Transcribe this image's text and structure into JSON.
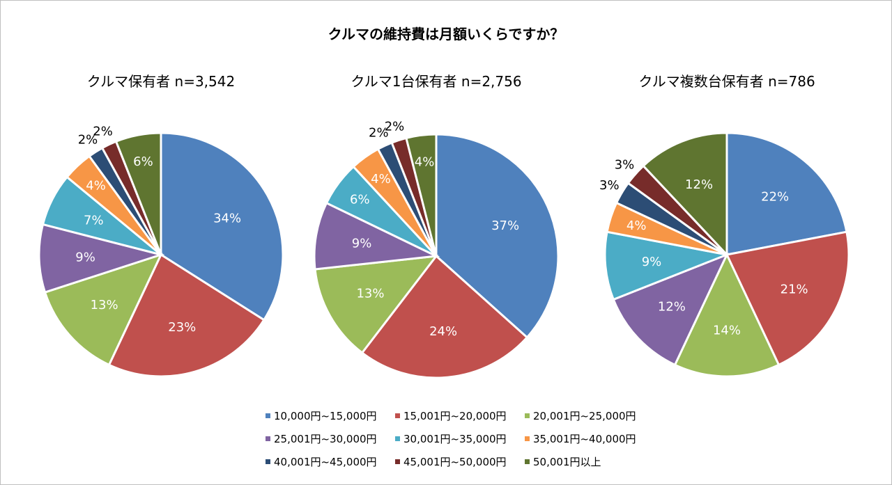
{
  "chart_data": {
    "type": "pie",
    "title": "クルマの維持費は月額いくらですか？",
    "categories": [
      "10,000円~15,000円",
      "15,001円~20,000円",
      "20,001円~25,000円",
      "25,001円~30,000円",
      "30,001円~35,000円",
      "35,001円~40,000円",
      "40,001円~45,000円",
      "45,001円~50,000円",
      "50,001円以上"
    ],
    "colors": [
      "#4f81bd",
      "#c0504d",
      "#9bbb59",
      "#8064a2",
      "#4bacc6",
      "#f79646",
      "#2c4d75",
      "#772c2a",
      "#5f7530"
    ],
    "legend_position": "bottom",
    "charts": [
      {
        "title": "クルマ保有者 n=3,542",
        "values": [
          34,
          23,
          13,
          9,
          7,
          4,
          2,
          2,
          6
        ]
      },
      {
        "title": "クルマ1台保有者 n=2,756",
        "values": [
          37,
          24,
          13,
          9,
          6,
          4,
          2,
          2,
          4
        ]
      },
      {
        "title": "クルマ複数台保有者 n=786",
        "values": [
          22,
          21,
          14,
          12,
          9,
          4,
          3,
          3,
          12
        ]
      }
    ]
  }
}
